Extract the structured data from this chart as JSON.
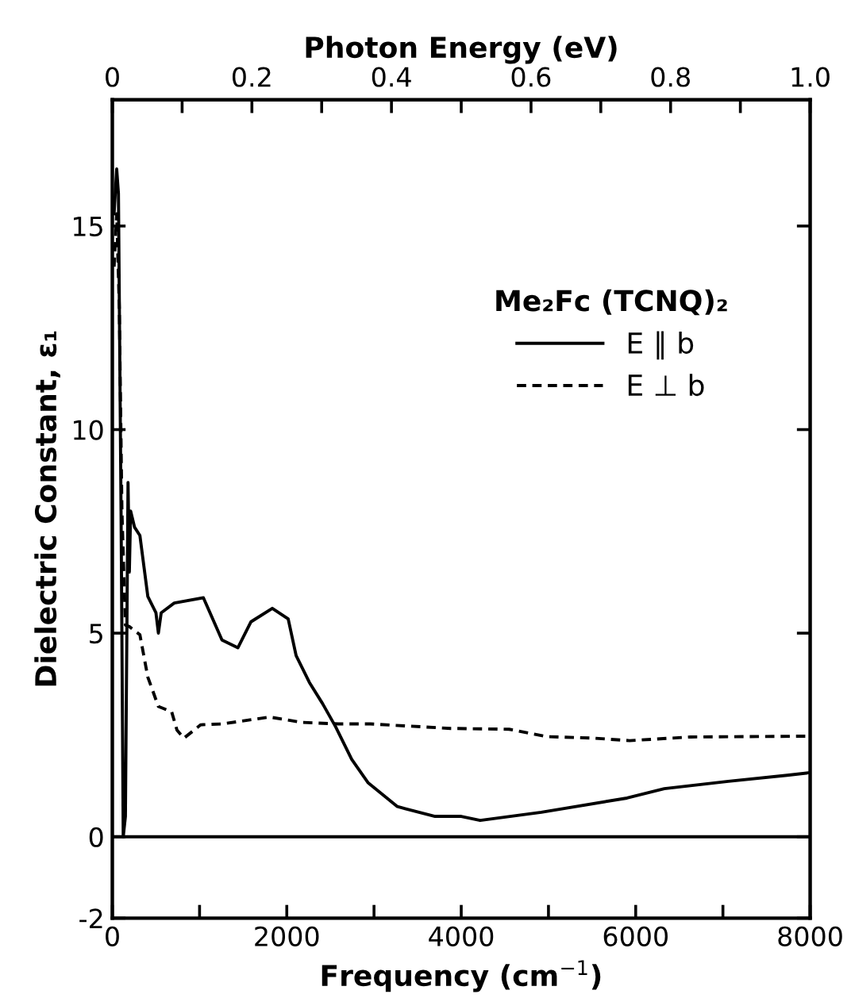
{
  "chart_data": {
    "type": "line",
    "xlabel": "Frequency (cm$^{−1}$)",
    "ylabel": "Dielectric Constant, ε₁",
    "x2label": "Photon Energy (eV)",
    "legend_title": "Me₂Fc (TCNQ)₂",
    "xlim": [
      0,
      8000
    ],
    "ylim": [
      -2,
      18.1
    ],
    "x2lim": [
      0,
      1.0
    ],
    "xticks": [
      0,
      {
        "value": 1000,
        "label": null
      },
      2000,
      {
        "value": 3000,
        "label": null
      },
      4000,
      {
        "value": 5000,
        "label": null
      },
      6000,
      {
        "value": 7000,
        "label": null
      },
      8000
    ],
    "yticks": [
      -2,
      0,
      5,
      10,
      15
    ],
    "x2ticks": [
      0,
      {
        "value": 0.1,
        "label": null
      },
      0.2,
      {
        "value": 0.3,
        "label": null
      },
      0.4,
      {
        "value": 0.5,
        "label": null
      },
      0.6,
      {
        "value": 0.7,
        "label": null
      },
      0.8,
      {
        "value": 0.9,
        "label": null
      },
      {
        "value": 1.0,
        "label": "1.0"
      }
    ],
    "ref_lines": [
      {
        "axis": "y",
        "value": 0,
        "color": "#000000"
      }
    ],
    "legend": "top right",
    "grid": false,
    "series": [
      {
        "name": "E ∥ b",
        "color": "#000000",
        "line_style": "solid",
        "x": [
          20,
          50,
          70,
          100,
          125,
          150,
          180,
          195,
          210,
          255,
          316,
          407,
          500,
          528,
          560,
          710,
          1044,
          1257,
          1439,
          1590,
          1834,
          2016,
          2107,
          2259,
          2410,
          2560,
          2744,
          2930,
          3268,
          3700,
          4000,
          4217,
          4918,
          5900,
          6328,
          7062,
          7736,
          7980
        ],
        "values": [
          15.3,
          16.4,
          15.8,
          8,
          0.0,
          0.5,
          8.7,
          6.5,
          8.0,
          7.6,
          7.4,
          5.9,
          5.5,
          5.0,
          5.5,
          5.74,
          5.87,
          4.83,
          4.64,
          5.28,
          5.61,
          5.35,
          4.45,
          3.79,
          3.27,
          2.7,
          1.9,
          1.33,
          0.74,
          0.5,
          0.5,
          0.4,
          0.6,
          0.95,
          1.18,
          1.36,
          1.51,
          1.57
        ]
      },
      {
        "name": "E ⊥ b",
        "color": "#000000",
        "line_style": "dashed",
        "x": [
          20,
          50,
          80,
          110,
          150,
          195,
          316,
          407,
          528,
          680,
          741,
          820,
          1014,
          1257,
          1803,
          2168,
          2592,
          2960,
          3880,
          4550,
          4980,
          5530,
          5930,
          6630,
          7980
        ],
        "values": [
          14.0,
          15.3,
          13.0,
          8.0,
          5.2,
          5.16,
          4.96,
          3.92,
          3.2,
          3.07,
          2.62,
          2.42,
          2.75,
          2.77,
          2.94,
          2.81,
          2.77,
          2.77,
          2.66,
          2.64,
          2.46,
          2.42,
          2.36,
          2.45,
          2.47
        ]
      }
    ]
  }
}
